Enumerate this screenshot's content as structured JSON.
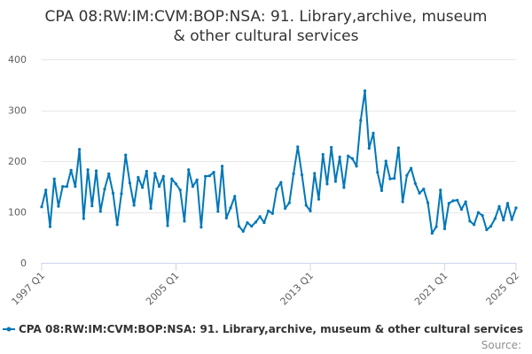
{
  "chart_data": {
    "type": "line",
    "title_lines": [
      "CPA 08:RW:IM:CVM:BOP:NSA: 91. Library,archive, museum",
      "& other cultural services"
    ],
    "xlabel": "",
    "ylabel": "",
    "ylim": [
      0,
      400
    ],
    "y_ticks": [
      0,
      100,
      200,
      300,
      400
    ],
    "x_tick_labels": [
      "1997 Q1",
      "2005 Q1",
      "2013 Q1",
      "2021 Q1",
      "2025 Q2"
    ],
    "x_tick_indices": [
      0,
      32,
      64,
      96,
      113
    ],
    "grid": true,
    "legend_position": "bottom",
    "series_color": "#0077b8",
    "credits": "Source:",
    "x_start": "1997 Q1",
    "x_end": "2025 Q2",
    "series": [
      {
        "name": "CPA 08:RW:IM:CVM:BOP:NSA: 91. Library,archive, museum & other cultural services",
        "values": [
          110,
          143,
          71,
          165,
          111,
          150,
          150,
          182,
          150,
          223,
          87,
          183,
          112,
          181,
          101,
          145,
          175,
          137,
          75,
          136,
          212,
          157,
          113,
          168,
          148,
          180,
          107,
          176,
          150,
          170,
          73,
          165,
          155,
          143,
          82,
          183,
          150,
          163,
          70,
          170,
          171,
          178,
          101,
          190,
          88,
          108,
          131,
          72,
          62,
          79,
          72,
          80,
          91,
          79,
          102,
          97,
          145,
          158,
          107,
          118,
          175,
          228,
          173,
          113,
          102,
          176,
          125,
          213,
          155,
          227,
          160,
          208,
          148,
          210,
          205,
          190,
          280,
          338,
          225,
          255,
          178,
          142,
          200,
          165,
          166,
          226,
          120,
          172,
          186,
          156,
          137,
          145,
          118,
          58,
          71,
          143,
          67,
          117,
          122,
          123,
          105,
          120,
          82,
          75,
          99,
          93,
          65,
          72,
          87,
          111,
          84,
          117,
          85,
          108
        ]
      }
    ]
  }
}
